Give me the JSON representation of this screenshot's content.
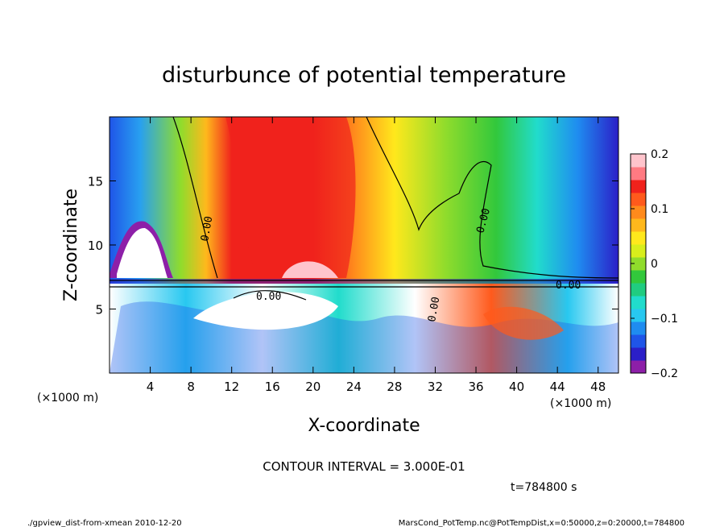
{
  "chart_data": {
    "type": "heatmap",
    "title": "disturbunce of potential temperature",
    "xlabel": "X-coordinate",
    "ylabel": "Z-coordinate",
    "x_unit": "(×1000 m)",
    "y_unit": "(×1000 m)",
    "xlim": [
      0,
      50
    ],
    "ylim": [
      0,
      20
    ],
    "x_ticks": [
      4,
      8,
      12,
      16,
      20,
      24,
      28,
      32,
      36,
      40,
      44,
      48
    ],
    "y_ticks": [
      5,
      10,
      15
    ],
    "colorbar": {
      "range": [
        -0.2,
        0.2
      ],
      "ticks": [
        {
          "value": 0.2,
          "label": "0.2"
        },
        {
          "value": 0.1,
          "label": "0.1"
        },
        {
          "value": 0,
          "label": "0"
        },
        {
          "value": -0.1,
          "label": "−0.1"
        },
        {
          "value": -0.2,
          "label": "−0.2"
        }
      ],
      "colors": [
        "#8d1fa8",
        "#2b1fc8",
        "#1f55e8",
        "#1f8cf0",
        "#28c8f0",
        "#21dccc",
        "#20cc80",
        "#32c83c",
        "#90dc2c",
        "#d8ee1c",
        "#ffe81c",
        "#ffb81c",
        "#ff8a1c",
        "#ff5a1c",
        "#f0221c",
        "#ff7a82",
        "#ffc4cc"
      ]
    },
    "contour_labels": [
      "0.00",
      "0.00",
      "0.00",
      "0.00",
      "0.00"
    ],
    "contour_interval": "CONTOUR INTERVAL = 3.000E-01",
    "time": "t=784800 s",
    "footer_left": "./gpview_dist-from-xmean  2010-12-20",
    "footer_right": "MarsCond_PotTemp.nc@PotTempDist,x=0:50000,z=0:20000,t=784800"
  }
}
